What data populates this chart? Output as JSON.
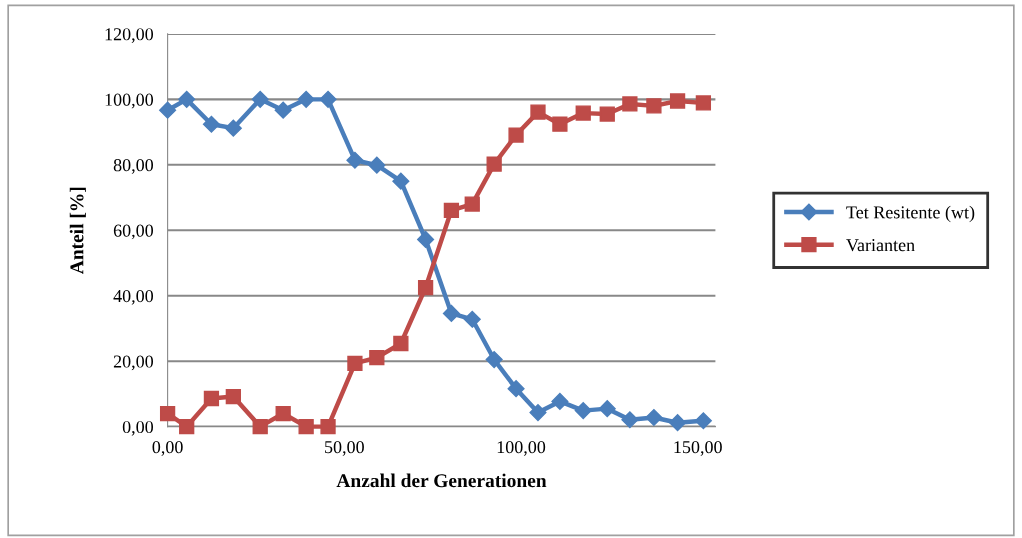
{
  "chart_data": {
    "type": "line",
    "xlabel": "Anzahl der Generationen",
    "ylabel": "Anteil [%]",
    "xlim": [
      0,
      155
    ],
    "xticks": [
      {
        "value": 0,
        "label": "0,00"
      },
      {
        "value": 50,
        "label": "50,00"
      },
      {
        "value": 100,
        "label": "100,00"
      },
      {
        "value": 150,
        "label": "150,00"
      }
    ],
    "ylim": [
      0,
      120
    ],
    "yticks": [
      {
        "value": 0,
        "label": "0,00"
      },
      {
        "value": 20,
        "label": "20,00"
      },
      {
        "value": 40,
        "label": "40,00"
      },
      {
        "value": 60,
        "label": "60,00"
      },
      {
        "value": 80,
        "label": "80,00"
      },
      {
        "value": 100,
        "label": "100,00"
      },
      {
        "value": 120,
        "label": "120,00"
      }
    ],
    "x": [
      0,
      5.4,
      12.4,
      18.6,
      26.2,
      32.7,
      39.2,
      45.4,
      53,
      59.2,
      66,
      73,
      80.3,
      86.2,
      92.4,
      98.6,
      104.8,
      111,
      117.6,
      124.4,
      130.8,
      137.6,
      144.3,
      151.6
    ],
    "grid": "y",
    "legend": "right",
    "series": [
      {
        "name": "Tet Resitente (wt)",
        "color": "#4a7ebb",
        "marker": "diamond",
        "values": [
          96.7,
          100,
          92.4,
          91.2,
          100,
          96.7,
          100,
          100,
          81.4,
          79.9,
          75,
          57.2,
          34.6,
          32.8,
          20.5,
          11.6,
          4.3,
          7.7,
          4.9,
          5.5,
          2.1,
          2.8,
          1.2,
          1.8
        ]
      },
      {
        "name": "Varianten",
        "color": "#be4b48",
        "marker": "square",
        "values": [
          4,
          0,
          8.6,
          9.2,
          0,
          4,
          0,
          0,
          19.3,
          21.1,
          25.4,
          42.5,
          66.1,
          68,
          80.2,
          89.1,
          96.1,
          92.4,
          95.8,
          95.5,
          98.6,
          98,
          99.5,
          98.9
        ]
      }
    ]
  }
}
